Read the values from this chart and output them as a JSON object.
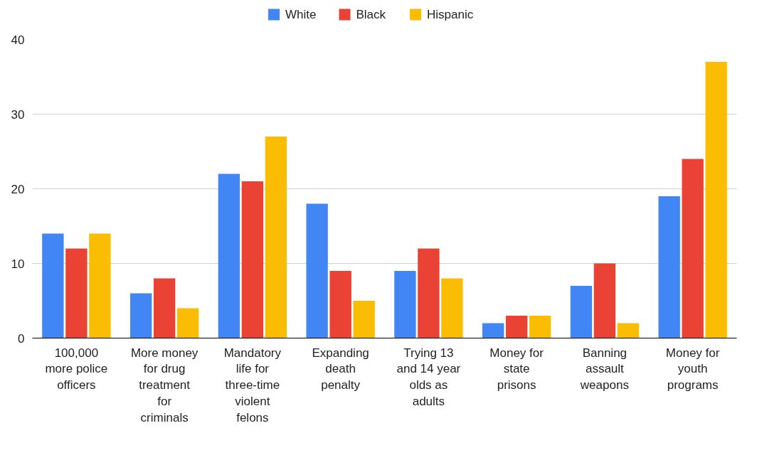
{
  "chart_data": {
    "type": "bar",
    "categories": [
      "100,000 more police officers",
      "More money for drug treatment for criminals",
      "Mandatory life for three-time violent felons",
      "Expanding death penalty",
      "Trying 13 and 14 year olds as adults",
      "Money for state prisons",
      "Banning assault weapons",
      "Money for youth programs"
    ],
    "series": [
      {
        "name": "White",
        "color": "#4285f4",
        "values": [
          14,
          6,
          22,
          18,
          9,
          2,
          7,
          19
        ]
      },
      {
        "name": "Black",
        "color": "#ea4335",
        "values": [
          12,
          8,
          21,
          9,
          12,
          3,
          10,
          24
        ]
      },
      {
        "name": "Hispanic",
        "color": "#fbbc04",
        "values": [
          14,
          4,
          27,
          5,
          8,
          3,
          2,
          37
        ]
      }
    ],
    "ylim": [
      0,
      40
    ],
    "yticks": [
      0,
      10,
      20,
      30,
      40
    ],
    "grid": "y",
    "legend": "top"
  }
}
